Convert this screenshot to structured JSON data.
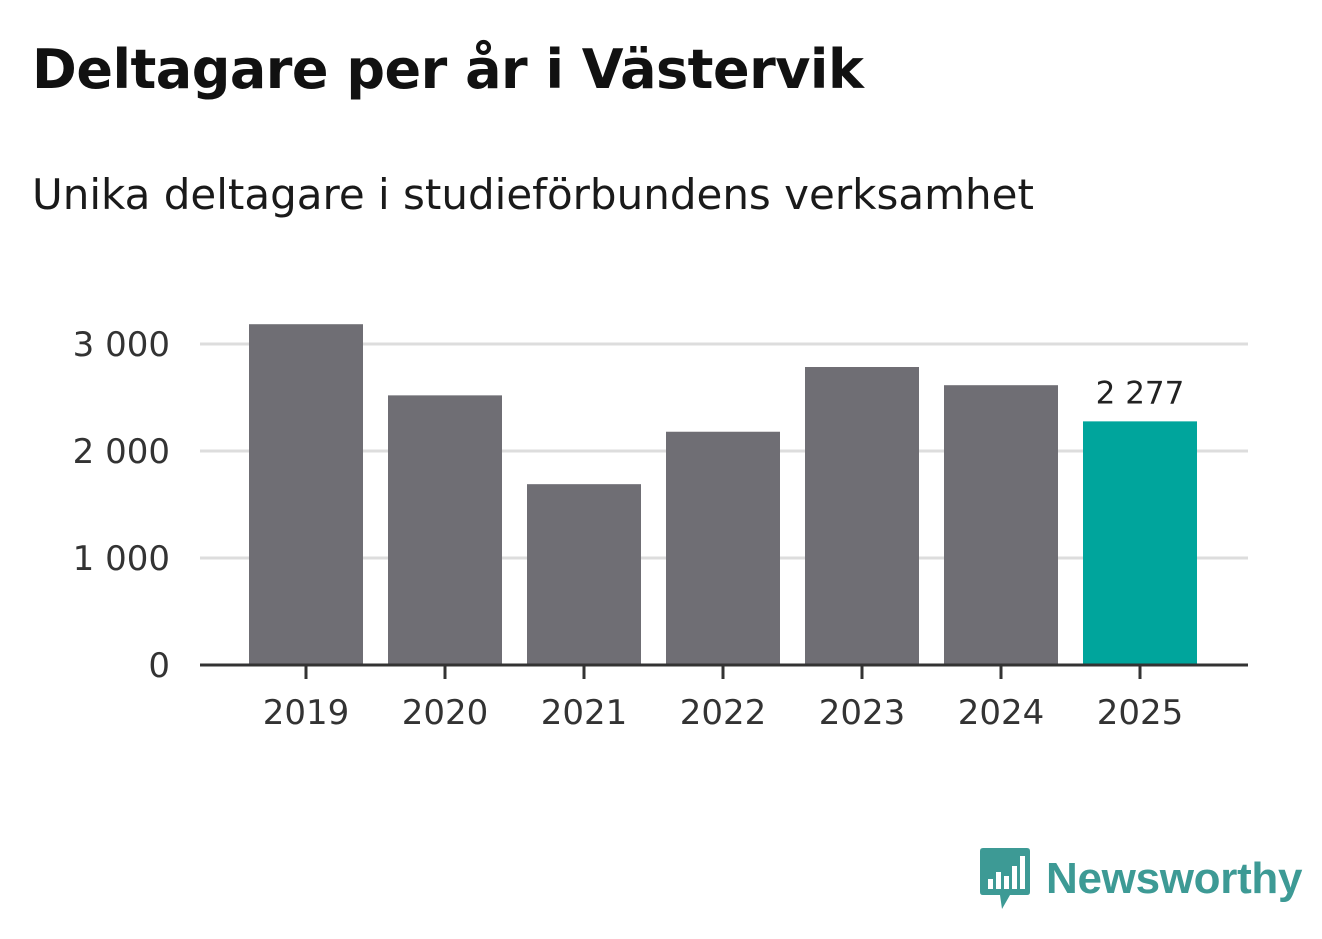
{
  "header": {
    "title": "Deltagare per år i Västervik",
    "subtitle": "Unika deltagare i studieförbundens verksamhet"
  },
  "chart_data": {
    "type": "bar",
    "title": "Deltagare per år i Västervik",
    "subtitle": "Unika deltagare i studieförbundens verksamhet",
    "xlabel": "",
    "ylabel": "",
    "categories": [
      "2019",
      "2020",
      "2021",
      "2022",
      "2023",
      "2024",
      "2025"
    ],
    "values": [
      3185,
      2520,
      1690,
      2180,
      2785,
      2615,
      2277
    ],
    "highlight_index": 6,
    "data_labels": [
      {
        "index": 6,
        "text": "2 277"
      }
    ],
    "ylim": [
      0,
      3000
    ],
    "yticks": [
      0,
      1000,
      2000,
      3000
    ],
    "ytick_labels": [
      "0",
      "1 000",
      "2 000",
      "3 000"
    ],
    "grid": true,
    "colors": {
      "bar": "#6f6e74",
      "highlight": "#00a59c",
      "grid": "#dddddd",
      "axis": "#333333"
    }
  },
  "branding": {
    "logo_text": "Newsworthy",
    "logo_icon": "bar-chart-speech-bubble-icon",
    "color": "#3d9a95"
  }
}
